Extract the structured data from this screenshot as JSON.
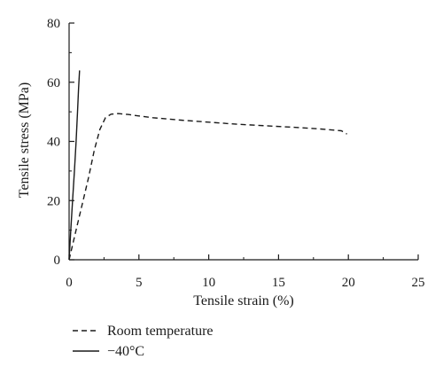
{
  "chart_data": {
    "type": "line",
    "title": "",
    "xlabel": "Tensile strain (%)",
    "ylabel": "Tensile stress (MPa)",
    "xlim": [
      0,
      25
    ],
    "ylim": [
      0,
      80
    ],
    "xticks": [
      0,
      5,
      10,
      15,
      20,
      25
    ],
    "yticks": [
      0,
      20,
      40,
      60,
      80
    ],
    "grid": false,
    "legend_position": "bottom-left",
    "series": [
      {
        "name": "Room temperature",
        "line_style": "dashed",
        "color": "#1a1a1a",
        "x": [
          0,
          0.3,
          0.7,
          1.0,
          1.4,
          1.8,
          2.2,
          2.6,
          3.0,
          3.5,
          4.2,
          5.0,
          6.0,
          8.0,
          10.0,
          12.0,
          14.0,
          16.0,
          18.0,
          19.5,
          19.9
        ],
        "y": [
          0,
          6,
          14,
          20,
          28,
          37,
          44,
          48,
          49.2,
          49.4,
          49.1,
          48.6,
          48.0,
          47.2,
          46.5,
          45.8,
          45.3,
          44.8,
          44.2,
          43.6,
          42.5
        ]
      },
      {
        "name": "−40°C",
        "line_style": "solid",
        "color": "#1a1a1a",
        "x": [
          0,
          0.12,
          0.25,
          0.38,
          0.5,
          0.6,
          0.68,
          0.75
        ],
        "y": [
          0,
          10,
          20,
          30,
          40,
          50,
          58,
          64
        ]
      }
    ]
  }
}
